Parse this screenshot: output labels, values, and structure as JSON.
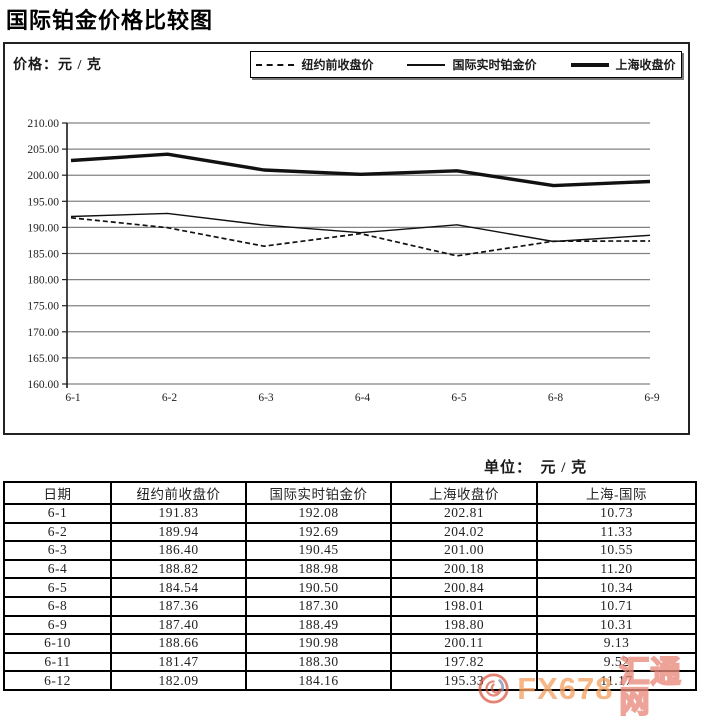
{
  "title": "国际铂金价格比较图",
  "chart": {
    "price_label": "价格：元 / 克",
    "legend": [
      {
        "name": "纽约前收盘价",
        "style": "dashed"
      },
      {
        "name": "国际实时铂金价",
        "style": "thin"
      },
      {
        "name": "上海收盘价",
        "style": "thick"
      }
    ]
  },
  "chart_data": {
    "type": "line",
    "title": "国际铂金价格比较图",
    "ylabel": "价格：元 / 克",
    "categories": [
      "6-1",
      "6-2",
      "6-3",
      "6-4",
      "6-5",
      "6-8",
      "6-9"
    ],
    "series": [
      {
        "name": "纽约前收盘价",
        "style": "dashed",
        "values": [
          191.83,
          189.94,
          186.4,
          188.82,
          184.54,
          187.36,
          187.4
        ]
      },
      {
        "name": "国际实时铂金价",
        "style": "thin",
        "values": [
          192.08,
          192.69,
          190.45,
          188.98,
          190.5,
          187.3,
          188.49
        ]
      },
      {
        "name": "上海收盘价",
        "style": "thick",
        "values": [
          202.81,
          204.02,
          201.0,
          200.18,
          200.84,
          198.01,
          198.8
        ]
      }
    ],
    "ylim": [
      160,
      210
    ],
    "ytick_step": 5,
    "y_tick_labels": [
      "210.00",
      "205.00",
      "200.00",
      "195.00",
      "190.00",
      "185.00",
      "180.00",
      "175.00",
      "170.00",
      "165.00",
      "160.00"
    ],
    "grid": true,
    "legend_position": "top-right",
    "line_color": "#111111",
    "grid_color": "#828282"
  },
  "unit_label": "单位：　元 / 克",
  "table": {
    "headers": [
      "日期",
      "纽约前收盘价",
      "国际实时铂金价",
      "上海收盘价",
      "上海-国际"
    ],
    "rows": [
      [
        "6-1",
        "191.83",
        "192.08",
        "202.81",
        "10.73"
      ],
      [
        "6-2",
        "189.94",
        "192.69",
        "204.02",
        "11.33"
      ],
      [
        "6-3",
        "186.40",
        "190.45",
        "201.00",
        "10.55"
      ],
      [
        "6-4",
        "188.82",
        "188.98",
        "200.18",
        "11.20"
      ],
      [
        "6-5",
        "184.54",
        "190.50",
        "200.84",
        "10.34"
      ],
      [
        "6-8",
        "187.36",
        "187.30",
        "198.01",
        "10.71"
      ],
      [
        "6-9",
        "187.40",
        "188.49",
        "198.80",
        "10.31"
      ],
      [
        "6-10",
        "188.66",
        "190.98",
        "200.11",
        "9.13"
      ],
      [
        "6-11",
        "181.47",
        "188.30",
        "197.82",
        "9.52"
      ],
      [
        "6-12",
        "182.09",
        "184.16",
        "195.33",
        "11.17"
      ]
    ]
  },
  "watermark": {
    "brand": "FX678",
    "site": "汇通网",
    "logo": "swirl-logo-icon",
    "color_orange": "#f5a263",
    "color_red": "#d94f38",
    "color_blue": "#7e93b4"
  }
}
